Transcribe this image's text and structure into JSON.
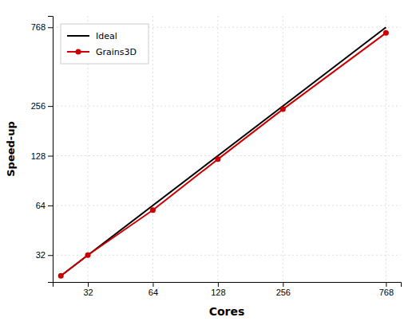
{
  "chart_data": {
    "type": "line",
    "xlabel": "Cores",
    "ylabel": "Speed-up",
    "log": true,
    "grid": true,
    "legend": "upper-left",
    "xlim": [
      22,
      900
    ],
    "ylim": [
      22,
      900
    ],
    "xticks": [
      32,
      64,
      128,
      256,
      768
    ],
    "yticks": [
      32,
      64,
      128,
      256,
      768
    ],
    "series": [
      {
        "name": "Ideal",
        "color": "#000000",
        "x": [
          24,
          768
        ],
        "values": [
          24,
          768
        ]
      },
      {
        "name": "Grains3D",
        "color": "#cc0000",
        "marker": "circle",
        "x": [
          24,
          32,
          64,
          128,
          256,
          768
        ],
        "values": [
          24,
          32,
          60,
          122,
          245,
          710
        ]
      }
    ]
  }
}
